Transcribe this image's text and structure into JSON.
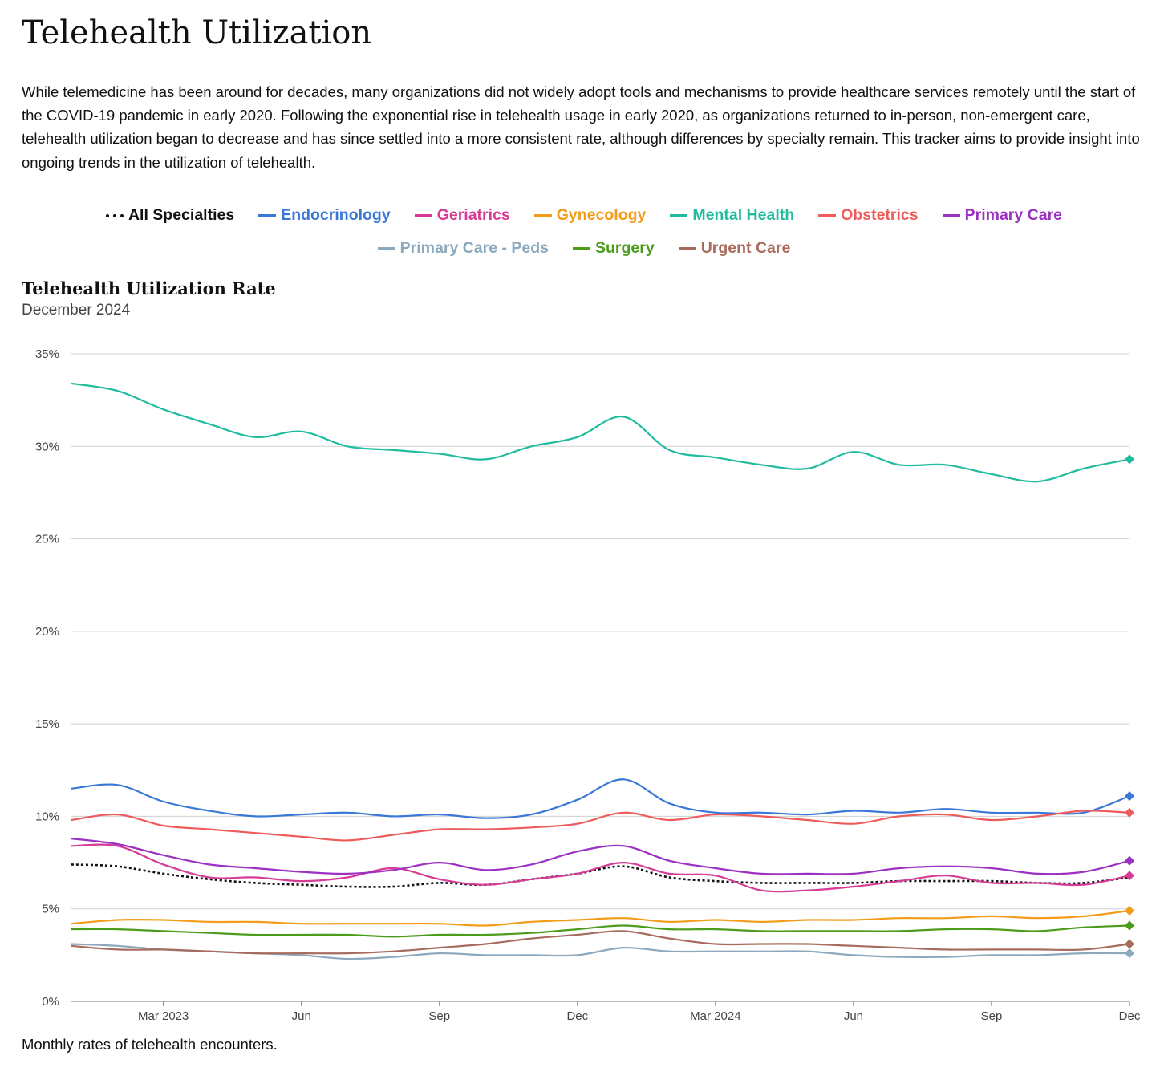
{
  "page": {
    "title": "Telehealth Utilization",
    "intro": "While telemedicine has been around for decades, many organizations did not widely adopt tools and mechanisms to provide healthcare services remotely until the start of the COVID-19 pandemic in early 2020. Following the exponential rise in telehealth usage in early 2020, as organizations returned to in-person, non-emergent care, telehealth utilization began to decrease and has since settled into a more consistent rate, although differences by specialty remain. This tracker aims to provide insight into ongoing trends in the utilization of telehealth.",
    "note": "Monthly rates of telehealth encounters."
  },
  "chart_data": {
    "type": "line",
    "title": "Telehealth Utilization Rate",
    "subtitle": "December 2024",
    "xlabel": "",
    "ylabel": "",
    "x": [
      "2023-01",
      "2023-02",
      "2023-03",
      "2023-04",
      "2023-05",
      "2023-06",
      "2023-07",
      "2023-08",
      "2023-09",
      "2023-10",
      "2023-11",
      "2023-12",
      "2024-01",
      "2024-02",
      "2024-03",
      "2024-04",
      "2024-05",
      "2024-06",
      "2024-07",
      "2024-08",
      "2024-09",
      "2024-10",
      "2024-11",
      "2024-12"
    ],
    "x_tick_labels": [
      {
        "x": "2023-03",
        "label": "Mar 2023"
      },
      {
        "x": "2023-06",
        "label": "Jun"
      },
      {
        "x": "2023-09",
        "label": "Sep"
      },
      {
        "x": "2023-12",
        "label": "Dec"
      },
      {
        "x": "2024-03",
        "label": "Mar 2024"
      },
      {
        "x": "2024-06",
        "label": "Jun"
      },
      {
        "x": "2024-09",
        "label": "Sep"
      },
      {
        "x": "2024-12",
        "label": "Dec"
      }
    ],
    "y_ticks": [
      {
        "value": 0,
        "label": "0%"
      },
      {
        "value": 5,
        "label": "5%"
      },
      {
        "value": 10,
        "label": "10%"
      },
      {
        "value": 15,
        "label": "15%"
      },
      {
        "value": 20,
        "label": "20%"
      },
      {
        "value": 25,
        "label": "25%"
      },
      {
        "value": 30,
        "label": "30%"
      },
      {
        "value": 35,
        "label": "35%"
      }
    ],
    "ylim": [
      0,
      35
    ],
    "grid": "horizontal",
    "legend_position": "top",
    "end_markers": "diamond",
    "series": [
      {
        "name": "All Specialties",
        "color": "#111111",
        "dashed": true,
        "values": [
          7.4,
          7.3,
          6.9,
          6.6,
          6.4,
          6.3,
          6.2,
          6.2,
          6.4,
          6.3,
          6.6,
          6.9,
          7.3,
          6.7,
          6.5,
          6.4,
          6.4,
          6.4,
          6.5,
          6.5,
          6.5,
          6.4,
          6.4,
          6.7
        ]
      },
      {
        "name": "Endocrinology",
        "color": "#3a78d8",
        "dashed": false,
        "values": [
          11.5,
          11.7,
          10.8,
          10.3,
          10.0,
          10.1,
          10.2,
          10.0,
          10.1,
          9.9,
          10.1,
          10.9,
          12.0,
          10.7,
          10.2,
          10.2,
          10.1,
          10.3,
          10.2,
          10.4,
          10.2,
          10.2,
          10.2,
          11.1
        ]
      },
      {
        "name": "Geriatrics",
        "color": "#d63b96",
        "dashed": false,
        "values": [
          8.4,
          8.4,
          7.4,
          6.7,
          6.7,
          6.5,
          6.7,
          7.2,
          6.6,
          6.3,
          6.6,
          6.9,
          7.5,
          6.9,
          6.8,
          6.0,
          6.0,
          6.2,
          6.5,
          6.8,
          6.4,
          6.4,
          6.3,
          6.8
        ]
      },
      {
        "name": "Gynecology",
        "color": "#f39c1a",
        "dashed": false,
        "values": [
          4.2,
          4.4,
          4.4,
          4.3,
          4.3,
          4.2,
          4.2,
          4.2,
          4.2,
          4.1,
          4.3,
          4.4,
          4.5,
          4.3,
          4.4,
          4.3,
          4.4,
          4.4,
          4.5,
          4.5,
          4.6,
          4.5,
          4.6,
          4.9
        ]
      },
      {
        "name": "Mental Health",
        "color": "#21bb9e",
        "dashed": false,
        "values": [
          33.4,
          33.0,
          32.0,
          31.2,
          30.5,
          30.8,
          30.0,
          29.8,
          29.6,
          29.3,
          30.0,
          30.5,
          31.6,
          29.8,
          29.4,
          29.0,
          28.8,
          29.7,
          29.0,
          29.0,
          28.5,
          28.1,
          28.8,
          29.3
        ]
      },
      {
        "name": "Obstetrics",
        "color": "#ef5b5b",
        "dashed": false,
        "values": [
          9.8,
          10.1,
          9.5,
          9.3,
          9.1,
          8.9,
          8.7,
          9.0,
          9.3,
          9.3,
          9.4,
          9.6,
          10.2,
          9.8,
          10.1,
          10.0,
          9.8,
          9.6,
          10.0,
          10.1,
          9.8,
          10.0,
          10.3,
          10.2
        ]
      },
      {
        "name": "Primary Care",
        "color": "#9b30c2",
        "dashed": false,
        "values": [
          8.8,
          8.5,
          7.9,
          7.4,
          7.2,
          7.0,
          6.9,
          7.1,
          7.5,
          7.1,
          7.4,
          8.1,
          8.4,
          7.6,
          7.2,
          6.9,
          6.9,
          6.9,
          7.2,
          7.3,
          7.2,
          6.9,
          7.0,
          7.6
        ]
      },
      {
        "name": "Primary Care - Peds",
        "color": "#8ba8bd",
        "dashed": false,
        "values": [
          3.1,
          3.0,
          2.8,
          2.7,
          2.6,
          2.5,
          2.3,
          2.4,
          2.6,
          2.5,
          2.5,
          2.5,
          2.9,
          2.7,
          2.7,
          2.7,
          2.7,
          2.5,
          2.4,
          2.4,
          2.5,
          2.5,
          2.6,
          2.6
        ]
      },
      {
        "name": "Surgery",
        "color": "#4c9c1b",
        "dashed": false,
        "values": [
          3.9,
          3.9,
          3.8,
          3.7,
          3.6,
          3.6,
          3.6,
          3.5,
          3.6,
          3.6,
          3.7,
          3.9,
          4.1,
          3.9,
          3.9,
          3.8,
          3.8,
          3.8,
          3.8,
          3.9,
          3.9,
          3.8,
          4.0,
          4.1
        ]
      },
      {
        "name": "Urgent Care",
        "color": "#a86c5e",
        "dashed": false,
        "values": [
          3.0,
          2.8,
          2.8,
          2.7,
          2.6,
          2.6,
          2.6,
          2.7,
          2.9,
          3.1,
          3.4,
          3.6,
          3.8,
          3.4,
          3.1,
          3.1,
          3.1,
          3.0,
          2.9,
          2.8,
          2.8,
          2.8,
          2.8,
          3.1
        ]
      }
    ]
  }
}
